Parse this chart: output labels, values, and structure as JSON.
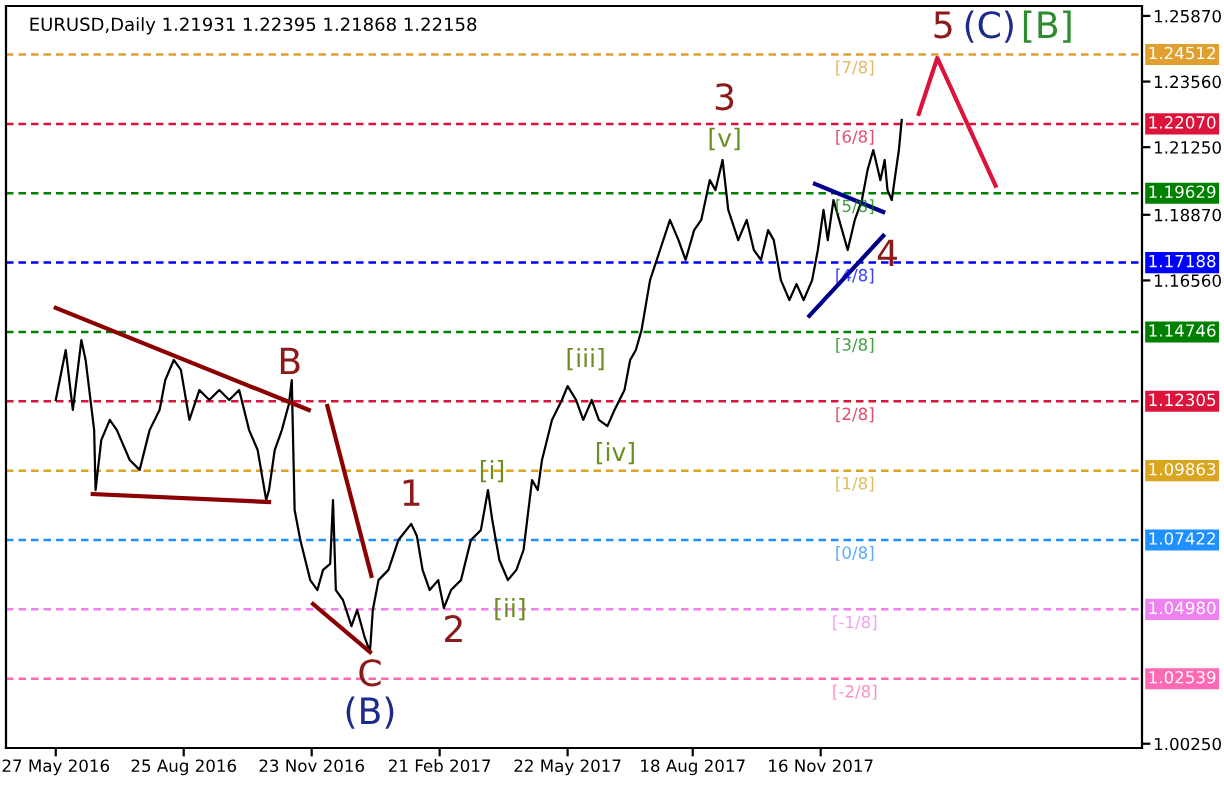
{
  "chart_data": {
    "type": "line",
    "title": "EURUSD,Daily 1.21931 1.22395 1.21868 1.22158",
    "xlim": [
      "2016-04-22",
      "2018-06-30"
    ],
    "ylim": [
      1.001,
      1.2622
    ],
    "xticks": [
      {
        "value": "2016-05-27",
        "label": "27 May 2016"
      },
      {
        "value": "2016-08-25",
        "label": "25 Aug 2016"
      },
      {
        "value": "2016-11-23",
        "label": "23 Nov 2016"
      },
      {
        "value": "2017-02-21",
        "label": "21 Feb 2017"
      },
      {
        "value": "2017-05-22",
        "label": "22 May 2017"
      },
      {
        "value": "2017-08-18",
        "label": "18 Aug 2017"
      },
      {
        "value": "2017-11-16",
        "label": "16 Nov 2017"
      }
    ],
    "yticks": [
      {
        "value": 1.2587,
        "label": "1.25870"
      },
      {
        "value": 1.2356,
        "label": "1.23560"
      },
      {
        "value": 1.2125,
        "label": "1.21250"
      },
      {
        "value": 1.1887,
        "label": "1.18870"
      },
      {
        "value": 1.1656,
        "label": "1.16560"
      },
      {
        "value": 1.0025,
        "label": "1.00250"
      }
    ],
    "grid": false,
    "legend": false,
    "series": [
      {
        "color": "#000000",
        "x": [
          "2016-05-27",
          "2016-06-03",
          "2016-06-08",
          "2016-06-14",
          "2016-06-17",
          "2016-06-23",
          "2016-06-24",
          "2016-06-28",
          "2016-07-04",
          "2016-07-09",
          "2016-07-18",
          "2016-07-25",
          "2016-08-01",
          "2016-08-08",
          "2016-08-12",
          "2016-08-18",
          "2016-08-23",
          "2016-08-29",
          "2016-09-05",
          "2016-09-12",
          "2016-09-19",
          "2016-09-26",
          "2016-10-03",
          "2016-10-10",
          "2016-10-16",
          "2016-10-22",
          "2016-10-24",
          "2016-10-28",
          "2016-11-02",
          "2016-11-07",
          "2016-11-09",
          "2016-11-11",
          "2016-11-15",
          "2016-11-22",
          "2016-11-27",
          "2016-12-01",
          "2016-12-06",
          "2016-12-08",
          "2016-12-10",
          "2016-12-15",
          "2016-12-21",
          "2016-12-25",
          "2016-12-30",
          "2017-01-03",
          "2017-01-05",
          "2017-01-09",
          "2017-01-16",
          "2017-01-23",
          "2017-02-01",
          "2017-02-05",
          "2017-02-09",
          "2017-02-14",
          "2017-02-20",
          "2017-02-24",
          "2017-03-01",
          "2017-03-08",
          "2017-03-15",
          "2017-03-22",
          "2017-03-27",
          "2017-03-30",
          "2017-04-04",
          "2017-04-10",
          "2017-04-16",
          "2017-04-21",
          "2017-04-27",
          "2017-05-01",
          "2017-05-04",
          "2017-05-11",
          "2017-05-18",
          "2017-05-22",
          "2017-05-28",
          "2017-06-02",
          "2017-06-08",
          "2017-06-13",
          "2017-06-19",
          "2017-06-24",
          "2017-07-01",
          "2017-07-05",
          "2017-07-09",
          "2017-07-13",
          "2017-07-19",
          "2017-07-26",
          "2017-08-02",
          "2017-08-08",
          "2017-08-13",
          "2017-08-19",
          "2017-08-24",
          "2017-08-30",
          "2017-09-03",
          "2017-09-08",
          "2017-09-12",
          "2017-09-19",
          "2017-09-25",
          "2017-09-30",
          "2017-10-05",
          "2017-10-10",
          "2017-10-14",
          "2017-10-19",
          "2017-10-25",
          "2017-10-30",
          "2017-11-04",
          "2017-11-10",
          "2017-11-14",
          "2017-11-18",
          "2017-11-21",
          "2017-11-25",
          "2017-11-29",
          "2017-12-05",
          "2017-12-10",
          "2017-12-15",
          "2017-12-19",
          "2017-12-23",
          "2017-12-28",
          "2017-12-31",
          "2018-01-02",
          "2018-01-05",
          "2018-01-08",
          "2018-01-10",
          "2018-01-12"
        ],
        "values": [
          1.1235,
          1.1411,
          1.12,
          1.1446,
          1.1376,
          1.1129,
          1.0918,
          1.1094,
          1.1165,
          1.1129,
          1.1024,
          1.0989,
          1.1129,
          1.12,
          1.1305,
          1.1376,
          1.1341,
          1.1165,
          1.127,
          1.1235,
          1.127,
          1.1235,
          1.127,
          1.1129,
          1.1059,
          1.0883,
          1.0918,
          1.1059,
          1.1129,
          1.1221,
          1.1305,
          1.0848,
          1.0742,
          1.0601,
          1.0566,
          1.0637,
          1.0658,
          1.0883,
          1.0566,
          1.0531,
          1.0439,
          1.0496,
          1.0404,
          1.0348,
          1.0496,
          1.0601,
          1.0637,
          1.0742,
          1.0799,
          1.0756,
          1.0637,
          1.0566,
          1.0601,
          1.0503,
          1.0566,
          1.0601,
          1.0742,
          1.0777,
          1.0918,
          1.0813,
          1.0672,
          1.0601,
          1.0637,
          1.0707,
          1.0953,
          1.0918,
          1.1024,
          1.1165,
          1.1235,
          1.1284,
          1.1235,
          1.1165,
          1.1235,
          1.1165,
          1.1143,
          1.12,
          1.127,
          1.1376,
          1.1411,
          1.1481,
          1.1657,
          1.1763,
          1.1869,
          1.1798,
          1.1728,
          1.1833,
          1.1869,
          1.2009,
          1.1974,
          1.208,
          1.1904,
          1.1798,
          1.1869,
          1.1763,
          1.1728,
          1.1833,
          1.1798,
          1.1657,
          1.1587,
          1.1643,
          1.1587,
          1.1657,
          1.1763,
          1.1904,
          1.1798,
          1.1939,
          1.1869,
          1.1763,
          1.1869,
          1.1939,
          1.2045,
          1.2115,
          1.2009,
          1.208,
          1.1974,
          1.1939,
          1.2045,
          1.2115,
          1.2221
        ]
      },
      {
        "color": "#8b0000",
        "x": [
          "2016-05-27",
          "2016-11-21"
        ],
        "values": [
          1.1559,
          1.12
        ]
      },
      {
        "color": "#8b0000",
        "x": [
          "2016-06-22",
          "2016-10-24"
        ],
        "values": [
          1.0904,
          1.0876
        ]
      },
      {
        "color": "#8b0000",
        "x": [
          "2016-12-04",
          "2017-01-04"
        ],
        "values": [
          1.1214,
          1.0616
        ]
      },
      {
        "color": "#8b0000",
        "x": [
          "2016-11-24",
          "2017-01-03"
        ],
        "values": [
          1.0517,
          1.0348
        ]
      },
      {
        "color": "#00008b",
        "x": [
          "2017-11-12",
          "2017-12-30"
        ],
        "values": [
          1.1996,
          1.1897
        ]
      },
      {
        "color": "#00008b",
        "x": [
          "2017-11-08",
          "2017-12-30"
        ],
        "values": [
          1.1531,
          1.1813
        ]
      },
      {
        "color": "#dc143c",
        "x": [
          "2018-01-24",
          "2018-02-06",
          "2018-03-19"
        ],
        "values": [
          1.2242,
          1.2439,
          1.1989
        ]
      }
    ],
    "ref_lines": [
      {
        "axis": "y",
        "value": 1.24512,
        "label": "1.24512",
        "color": "#e0a030",
        "line_style": "dashed"
      },
      {
        "axis": "y",
        "value": 1.2207,
        "label": "1.22070",
        "color": "#dc143c",
        "line_style": "dashed"
      },
      {
        "axis": "y",
        "value": 1.19629,
        "label": "1.19629",
        "color": "#008000",
        "line_style": "dashed"
      },
      {
        "axis": "y",
        "value": 1.17188,
        "label": "1.17188",
        "color": "#0000ff",
        "line_style": "dashed"
      },
      {
        "axis": "y",
        "value": 1.14746,
        "label": "1.14746",
        "color": "#008000",
        "line_style": "dashed"
      },
      {
        "axis": "y",
        "value": 1.12305,
        "label": "1.12305",
        "color": "#dc143c",
        "line_style": "dashed"
      },
      {
        "axis": "y",
        "value": 1.09863,
        "label": "1.09863",
        "color": "#daa520",
        "line_style": "dashed"
      },
      {
        "axis": "y",
        "value": 1.07422,
        "label": "1.07422",
        "color": "#1e90ff",
        "line_style": "dashed"
      },
      {
        "axis": "y",
        "value": 1.0498,
        "label": "1.04980",
        "color": "#ee82ee",
        "line_style": "dashed"
      },
      {
        "axis": "y",
        "value": 1.02539,
        "label": "1.02539",
        "color": "#ff69b4",
        "line_style": "dashed"
      }
    ],
    "annotations": [
      {
        "text": "B",
        "x": "2016-11-09",
        "y": 1.1305
      },
      {
        "text": "C",
        "x": "2017-01-03",
        "y": 1.0348
      },
      {
        "text": "(B)",
        "x": "2017-01-03",
        "y": 1.0348
      },
      {
        "text": "1",
        "x": "2017-02-01",
        "y": 1.0799
      },
      {
        "text": "2",
        "x": "2017-02-24",
        "y": 1.0503
      },
      {
        "text": "[i]",
        "x": "2017-03-27",
        "y": 1.0918
      },
      {
        "text": "[ii]",
        "x": "2017-04-10",
        "y": 1.0601
      },
      {
        "text": "[iii]",
        "x": "2017-05-22",
        "y": 1.1284
      },
      {
        "text": "[iv]",
        "x": "2017-06-19",
        "y": 1.1143
      },
      {
        "text": "3",
        "x": "2017-09-08",
        "y": 1.208
      },
      {
        "text": "[v]",
        "x": "2017-09-08",
        "y": 1.208
      },
      {
        "text": "4",
        "x": "2018-01-02",
        "y": 1.1939
      },
      {
        "text": "5",
        "x": "2018-02-06",
        "y": 1.2439
      },
      {
        "text": "(C)",
        "x": "2018-02-06",
        "y": 1.2439
      },
      {
        "text": "[B]",
        "x": "2018-02-06",
        "y": 1.2439
      },
      {
        "text": "[7/8]",
        "x": "2017-12-10",
        "y": 1.24512
      },
      {
        "text": "[6/8]",
        "x": "2017-12-10",
        "y": 1.2207
      },
      {
        "text": "[5/8]",
        "x": "2017-12-10",
        "y": 1.19629
      },
      {
        "text": "[4/8]",
        "x": "2017-12-10",
        "y": 1.17188
      },
      {
        "text": "[3/8]",
        "x": "2017-12-10",
        "y": 1.14746
      },
      {
        "text": "[2/8]",
        "x": "2017-12-10",
        "y": 1.12305
      },
      {
        "text": "[1/8]",
        "x": "2017-12-10",
        "y": 1.09863
      },
      {
        "text": "[0/8]",
        "x": "2017-12-10",
        "y": 1.07422
      },
      {
        "text": "[-1/8]",
        "x": "2017-12-10",
        "y": 1.0498
      },
      {
        "text": "[-2/8]",
        "x": "2017-12-10",
        "y": 1.02539
      }
    ]
  }
}
